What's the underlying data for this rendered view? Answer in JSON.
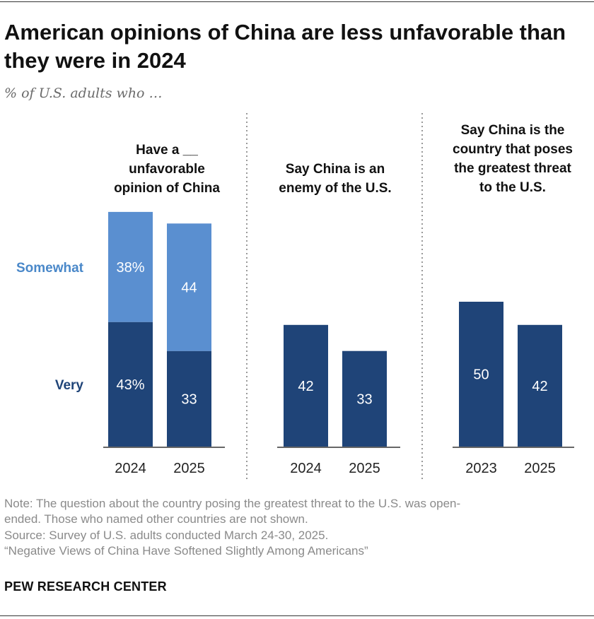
{
  "title": "American opinions of China are less unfavorable than they were in 2024",
  "subtitle": "% of U.S. adults who …",
  "colors": {
    "very": "#1f4478",
    "somewhat": "#5a8fd0",
    "axis": "#666666",
    "divider": "#999999",
    "very_label": "#1f4478",
    "somewhat_label": "#4a88c9"
  },
  "chart_data": {
    "type": "bar",
    "stacked_panel": "unfavorable",
    "ylim": [
      0,
      100
    ],
    "grid": false,
    "legend": "left, inline labels",
    "legend_labels": {
      "somewhat": "Somewhat",
      "very": "Very"
    },
    "panels": [
      {
        "id": "unfavorable",
        "title_lines": [
          "Have a __",
          "unfavorable",
          "opinion of China"
        ],
        "categories": [
          "2024",
          "2025"
        ],
        "series": [
          {
            "name": "Very",
            "values": [
              43,
              33
            ],
            "labels": [
              "43%",
              "33"
            ]
          },
          {
            "name": "Somewhat",
            "values": [
              38,
              44
            ],
            "labels": [
              "38%",
              "44"
            ]
          }
        ]
      },
      {
        "id": "enemy",
        "title_lines": [
          "Say China is an",
          "enemy of the U.S."
        ],
        "categories": [
          "2024",
          "2025"
        ],
        "values": [
          42,
          33
        ],
        "labels": [
          "42",
          "33"
        ]
      },
      {
        "id": "threat",
        "title_lines": [
          "Say China is the",
          "country that poses",
          "the greatest threat",
          "to the U.S."
        ],
        "categories": [
          "2023",
          "2025"
        ],
        "values": [
          50,
          42
        ],
        "labels": [
          "50",
          "42"
        ]
      }
    ]
  },
  "notes": [
    "Note: The question about the country posing the greatest threat to the U.S. was open-",
    "ended. Those who named other countries are not shown.",
    "Source: Survey of U.S. adults conducted March 24-30, 2025.",
    "“Negative Views of China Have Softened Slightly Among Americans”"
  ],
  "brand": "PEW RESEARCH CENTER"
}
